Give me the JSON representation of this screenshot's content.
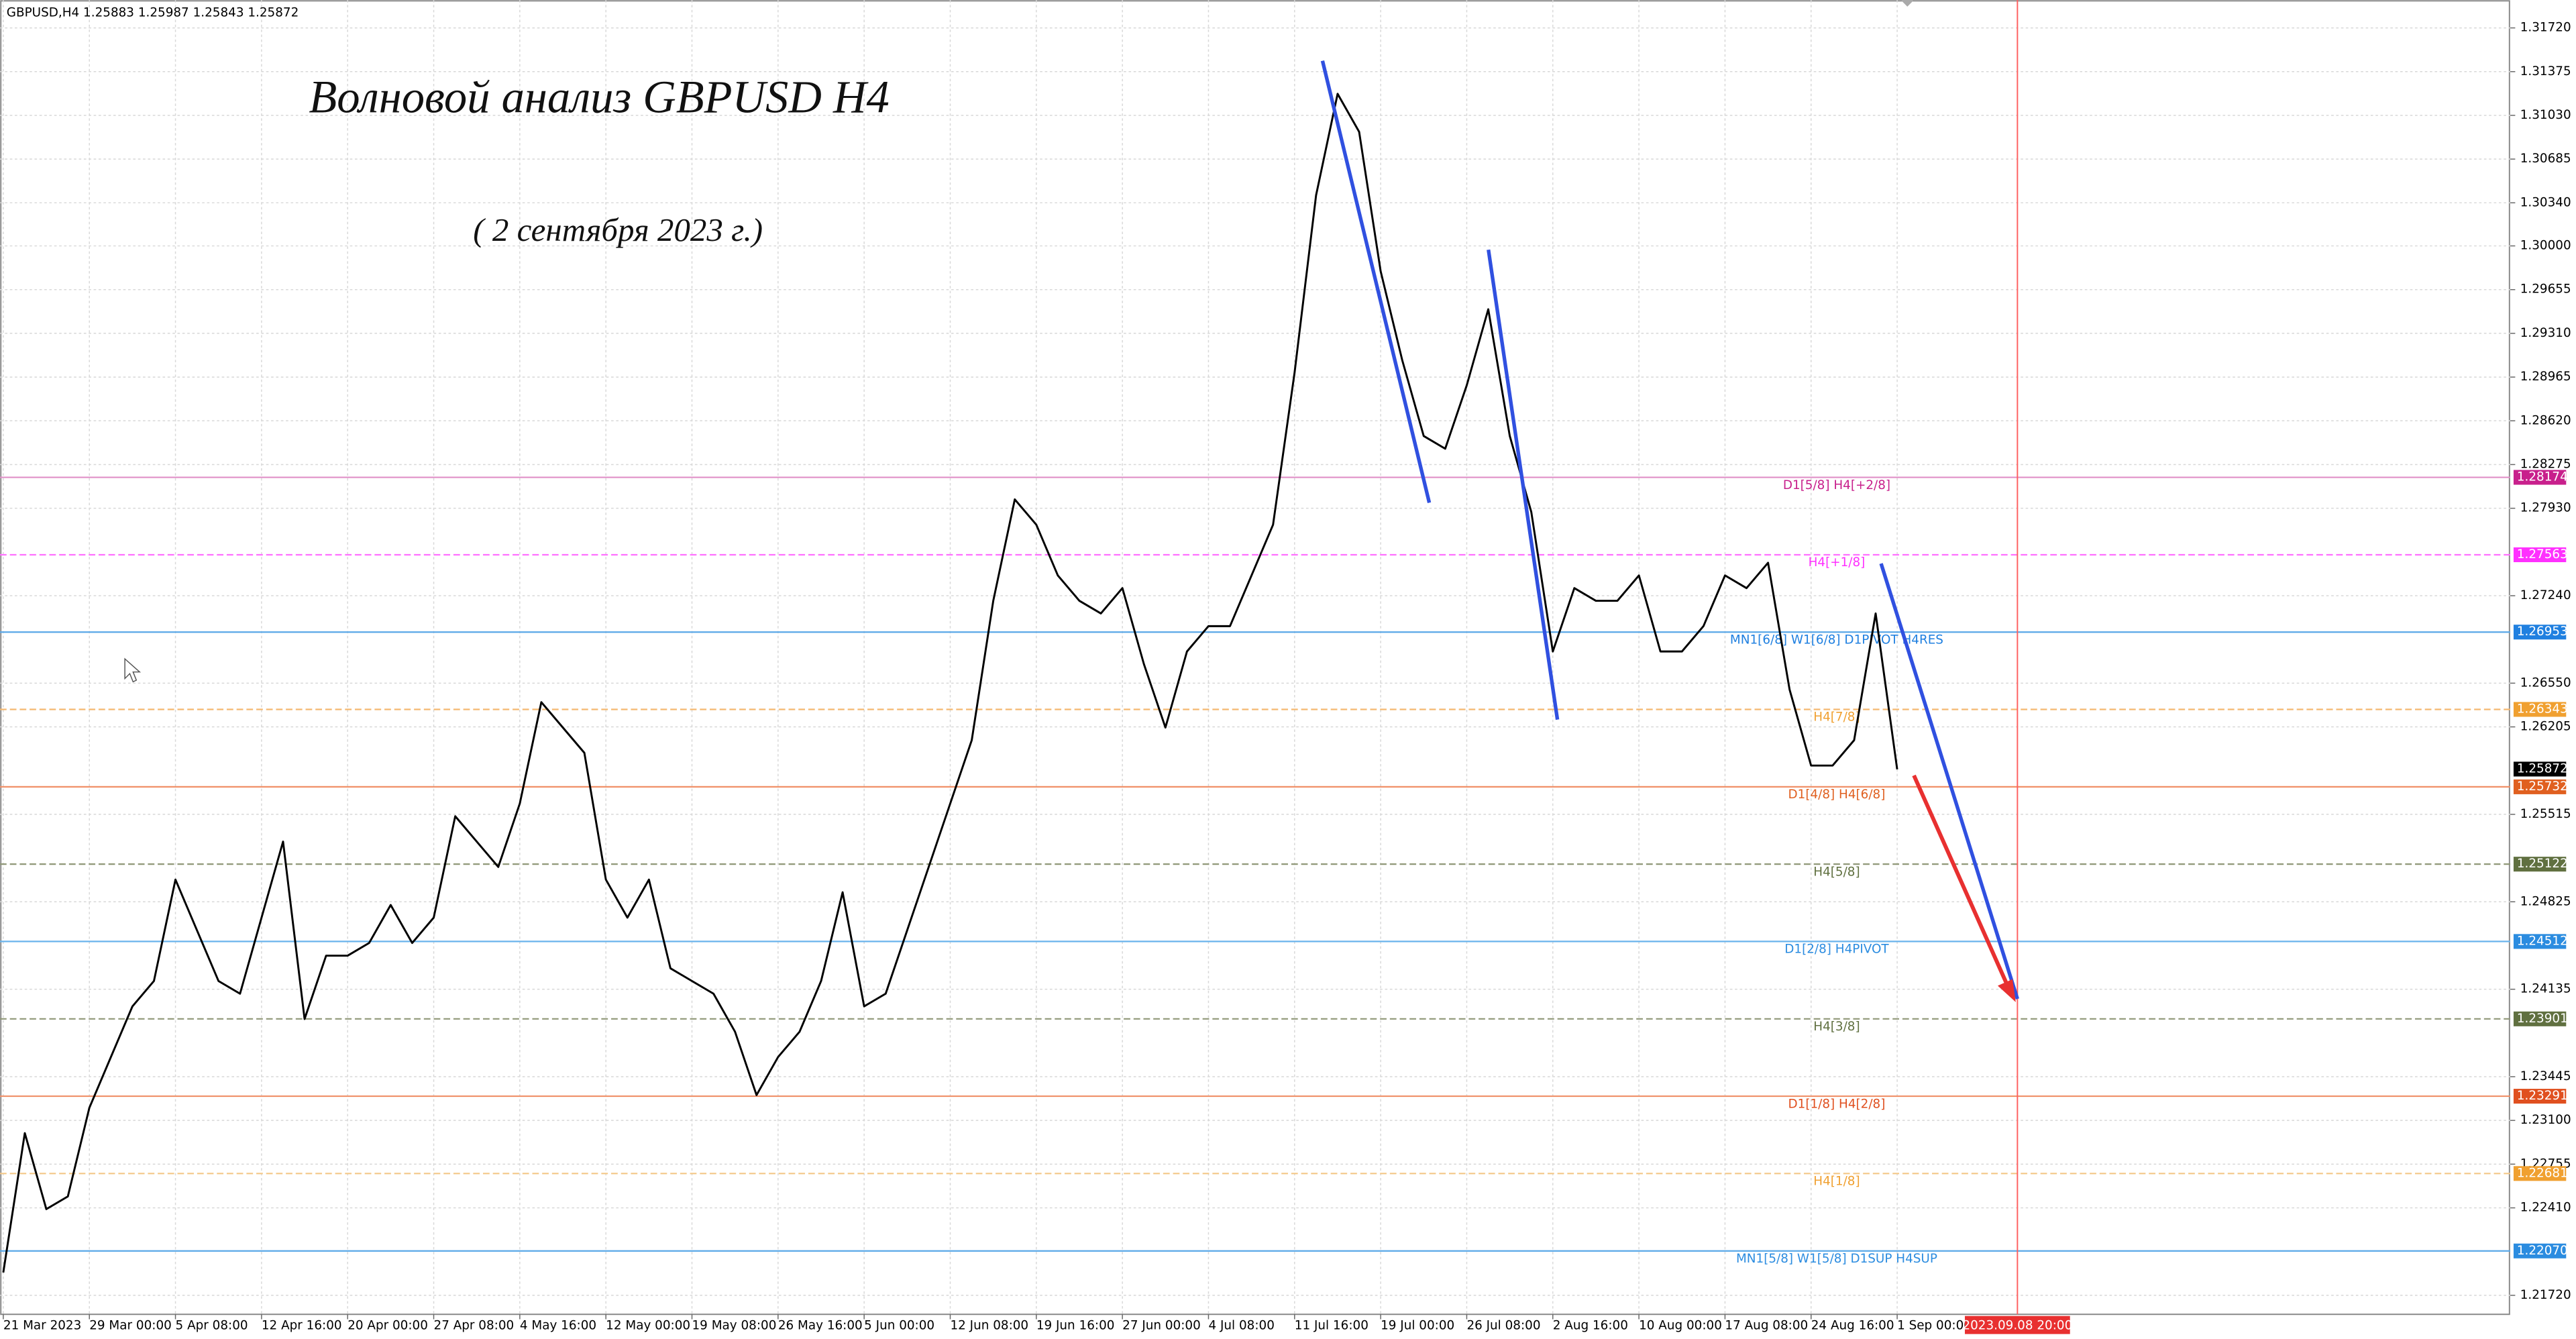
{
  "header": "GBPUSD,H4  1.25883 1.25987 1.25843 1.25872",
  "chart_data": {
    "type": "line",
    "title": "Волновой анализ GBPUSD H4",
    "subtitle": "( 2 сентября 2023 г.)",
    "future_label": "2023.09.08 20:00",
    "categories": [
      "21 Mar 2023",
      null,
      null,
      null,
      "29 Mar 00:00",
      null,
      null,
      null,
      "5 Apr 08:00",
      null,
      null,
      null,
      "12 Apr 16:00",
      null,
      null,
      null,
      "20 Apr 00:00",
      null,
      null,
      null,
      "27 Apr 08:00",
      null,
      null,
      null,
      "4 May 16:00",
      null,
      null,
      null,
      "12 May 00:00",
      null,
      null,
      null,
      "19 May 08:00",
      null,
      null,
      null,
      "26 May 16:00",
      null,
      null,
      null,
      "5 Jun 00:00",
      null,
      null,
      null,
      "12 Jun 08:00",
      null,
      null,
      null,
      "19 Jun 16:00",
      null,
      null,
      null,
      "27 Jun 00:00",
      null,
      null,
      null,
      "4 Jul 08:00",
      null,
      null,
      null,
      "11 Jul 16:00",
      null,
      null,
      null,
      "19 Jul 00:00",
      null,
      null,
      null,
      "26 Jul 08:00",
      null,
      null,
      null,
      "2 Aug 16:00",
      null,
      null,
      null,
      "10 Aug 00:00",
      null,
      null,
      null,
      "17 Aug 08:00",
      null,
      null,
      null,
      "24 Aug 16:00",
      null,
      null,
      null,
      "1 Sep 00:00"
    ],
    "series": [
      {
        "name": "GBPUSD",
        "color": "#000000",
        "values": [
          1.219,
          1.23,
          1.224,
          1.225,
          1.232,
          1.236,
          1.24,
          1.242,
          1.25,
          1.246,
          1.242,
          1.241,
          1.247,
          1.253,
          1.239,
          1.244,
          1.244,
          1.245,
          1.248,
          1.245,
          1.247,
          1.255,
          1.253,
          1.251,
          1.256,
          1.264,
          1.262,
          1.26,
          1.25,
          1.247,
          1.25,
          1.243,
          1.242,
          1.241,
          1.238,
          1.233,
          1.236,
          1.238,
          1.242,
          1.249,
          1.24,
          1.241,
          1.246,
          1.251,
          1.256,
          1.261,
          1.272,
          1.28,
          1.278,
          1.274,
          1.272,
          1.271,
          1.273,
          1.267,
          1.262,
          1.268,
          1.27,
          1.27,
          1.274,
          1.278,
          1.29,
          1.304,
          1.312,
          1.309,
          1.298,
          1.291,
          1.285,
          1.284,
          1.289,
          1.295,
          1.285,
          1.279,
          1.268,
          1.273,
          1.272,
          1.272,
          1.274,
          1.268,
          1.268,
          1.27,
          1.274,
          1.273,
          1.275,
          1.265,
          1.259,
          1.259,
          1.261,
          1.271,
          1.2587
        ]
      }
    ],
    "ylim": [
      1.2157,
      1.3194
    ],
    "yticks": [
      {
        "value": 1.3172,
        "label": "1.31720"
      },
      {
        "value": 1.31375,
        "label": "1.31375"
      },
      {
        "value": 1.3103,
        "label": "1.31030"
      },
      {
        "value": 1.30685,
        "label": "1.30685"
      },
      {
        "value": 1.3034,
        "label": "1.30340"
      },
      {
        "value": 1.3,
        "label": "1.30000"
      },
      {
        "value": 1.29655,
        "label": "1.29655"
      },
      {
        "value": 1.2931,
        "label": "1.29310"
      },
      {
        "value": 1.28965,
        "label": "1.28965"
      },
      {
        "value": 1.2862,
        "label": "1.28620"
      },
      {
        "value": 1.28275,
        "label": "1.28275"
      },
      {
        "value": 1.2793,
        "label": "1.27930"
      },
      {
        "value": 1.2724,
        "label": "1.27240"
      },
      {
        "value": 1.2655,
        "label": "1.26550"
      },
      {
        "value": 1.26205,
        "label": "1.26205"
      },
      {
        "value": 1.25515,
        "label": "1.25515"
      },
      {
        "value": 1.24825,
        "label": "1.24825"
      },
      {
        "value": 1.24135,
        "label": "1.24135"
      },
      {
        "value": 1.23445,
        "label": "1.23445"
      },
      {
        "value": 1.231,
        "label": "1.23100"
      },
      {
        "value": 1.22755,
        "label": "1.22755"
      },
      {
        "value": 1.2241,
        "label": "1.22410"
      },
      {
        "value": 1.2172,
        "label": "1.21720"
      }
    ],
    "grid": true,
    "current_price": {
      "value": 1.25872,
      "label": "1.25872"
    },
    "levels": [
      {
        "value": 1.28174,
        "price_label": "1.28174",
        "label": "D1[5/8] H4[+2/8]",
        "color": "#c8208c",
        "line": "#e090c8",
        "dashed": false
      },
      {
        "value": 1.27563,
        "price_label": "1.27563",
        "label": "H4[+1/8]",
        "color": "#ff30ff",
        "line": "#ff70ff",
        "dashed": true
      },
      {
        "value": 1.26953,
        "price_label": "1.26953",
        "label": "MN1[6/8] W1[6/8] D1PIVOT H4RES",
        "color": "#2080e0",
        "line": "#5aa8e8",
        "dashed": false
      },
      {
        "value": 1.26343,
        "price_label": "1.26343",
        "label": "H4[7/8]",
        "color": "#f0a030",
        "line": "#f4b870",
        "dashed": true
      },
      {
        "value": 1.25732,
        "price_label": "1.25732",
        "label": "D1[4/8] H4[6/8]",
        "color": "#e06020",
        "line": "#f09068",
        "dashed": false
      },
      {
        "value": 1.25122,
        "price_label": "1.25122",
        "label": "H4[5/8]",
        "color": "#607040",
        "line": "#909878",
        "dashed": true
      },
      {
        "value": 1.24512,
        "price_label": "1.24512",
        "label": "D1[2/8] H4PIVOT",
        "color": "#2b8ce0",
        "line": "#6ab4ec",
        "dashed": false
      },
      {
        "value": 1.23901,
        "price_label": "1.23901",
        "label": "H4[3/8]",
        "color": "#607040",
        "line": "#909878",
        "dashed": true
      },
      {
        "value": 1.23291,
        "price_label": "1.23291",
        "label": "D1[1/8] H4[2/8]",
        "color": "#e05020",
        "line": "#f09068",
        "dashed": false
      },
      {
        "value": 1.22681,
        "price_label": "1.22681",
        "label": "H4[1/8]",
        "color": "#f0a030",
        "line": "#f4c888",
        "dashed": true
      },
      {
        "value": 1.2207,
        "price_label": "1.22070",
        "label": "MN1[5/8] W1[5/8] D1SUP H4SUP",
        "color": "#2b8ce0",
        "line": "#5aa8e8",
        "dashed": false
      }
    ]
  }
}
